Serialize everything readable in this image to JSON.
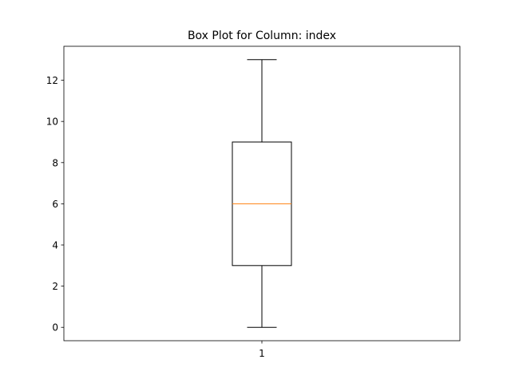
{
  "chart_data": {
    "type": "box",
    "title": "Box Plot for Column: index",
    "xlabel": "",
    "ylabel": "",
    "categories": [
      "1"
    ],
    "boxes": [
      {
        "label": "1",
        "whislo": 0,
        "q1": 3,
        "med": 6,
        "q3": 9,
        "whishi": 13
      }
    ],
    "ylim": [
      -0.65,
      13.65
    ],
    "yticks": [
      0,
      2,
      4,
      6,
      8,
      10,
      12
    ],
    "xlim": [
      0.5,
      1.5
    ],
    "grid": false,
    "colors": {
      "box": "#000000",
      "median": "#ff7f0e"
    }
  }
}
